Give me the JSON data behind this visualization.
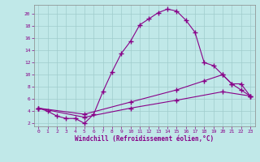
{
  "bg_color": "#c0e8e8",
  "grid_color": "#a0cccc",
  "line_color": "#880088",
  "xlabel": "Windchill (Refroidissement éolien,°C)",
  "xlim": [
    -0.5,
    23.5
  ],
  "ylim": [
    1.5,
    21.5
  ],
  "xticks": [
    0,
    1,
    2,
    3,
    4,
    5,
    6,
    7,
    8,
    9,
    10,
    11,
    12,
    13,
    14,
    15,
    16,
    17,
    18,
    19,
    20,
    21,
    22,
    23
  ],
  "yticks": [
    2,
    4,
    6,
    8,
    10,
    12,
    14,
    16,
    18,
    20
  ],
  "series": [
    {
      "x": [
        0,
        1,
        2,
        3,
        4,
        5,
        6,
        7,
        8,
        9,
        10,
        11,
        12,
        13,
        14,
        15,
        16,
        17,
        18,
        19,
        20,
        21,
        22,
        23
      ],
      "y": [
        4.5,
        4.0,
        3.2,
        2.8,
        2.8,
        2.0,
        3.5,
        7.2,
        10.5,
        13.5,
        15.5,
        18.2,
        19.2,
        20.2,
        20.8,
        20.5,
        19.0,
        17.0,
        12.0,
        11.5,
        10.0,
        8.5,
        7.5,
        6.5
      ]
    },
    {
      "x": [
        0,
        5,
        10,
        15,
        18,
        20,
        21,
        22,
        23
      ],
      "y": [
        4.5,
        3.5,
        5.5,
        7.5,
        9.0,
        10.0,
        8.5,
        8.5,
        6.5
      ]
    },
    {
      "x": [
        0,
        5,
        10,
        15,
        20,
        23
      ],
      "y": [
        4.5,
        3.0,
        4.5,
        5.8,
        7.2,
        6.5
      ]
    }
  ]
}
